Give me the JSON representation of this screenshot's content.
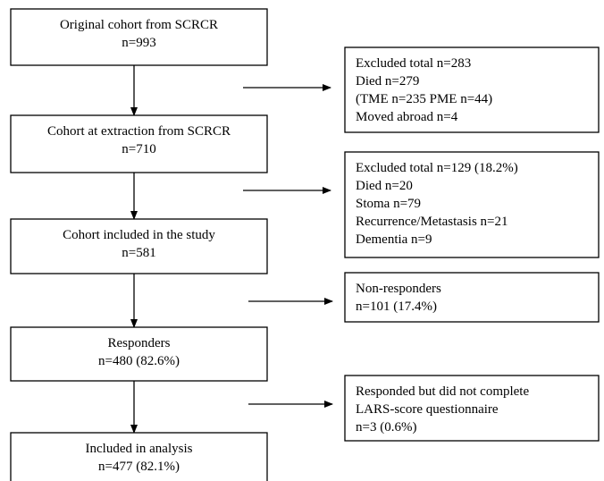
{
  "nodes": [
    {
      "lines": [
        "Original cohort from SCRCR",
        "n=993"
      ]
    },
    {
      "lines": [
        "Cohort at extraction from SCRCR",
        "n=710"
      ]
    },
    {
      "lines": [
        "Cohort included in the study",
        "n=581"
      ]
    },
    {
      "lines": [
        "Responders",
        "n=480 (82.6%)"
      ]
    },
    {
      "lines": [
        "Included in analysis",
        "n=477 (82.1%)"
      ]
    }
  ],
  "exclusions": [
    {
      "lines": [
        "Excluded total n=283",
        "Died n=279",
        "(TME n=235 PME n=44)",
        "Moved abroad n=4"
      ]
    },
    {
      "lines": [
        "Excluded total n=129 (18.2%)",
        "Died n=20",
        "Stoma n=79",
        "Recurrence/Metastasis n=21",
        "Dementia n=9"
      ]
    },
    {
      "lines": [
        "Non-responders",
        "n=101 (17.4%)"
      ]
    },
    {
      "lines": [
        "Responded but did not complete",
        "LARS-score questionnaire",
        "n=3 (0.6%)"
      ]
    }
  ]
}
